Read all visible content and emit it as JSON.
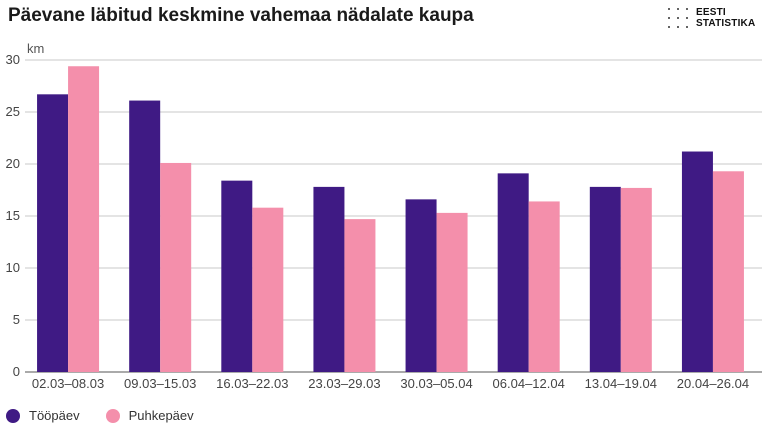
{
  "chart_data": {
    "type": "bar",
    "title": "Päevane läbitud keskmine vahemaa nädalate kaupa",
    "ylabel": "km",
    "xlabel": "",
    "ylim": [
      0,
      30
    ],
    "yticks": [
      0,
      5,
      10,
      15,
      20,
      25,
      30
    ],
    "grid": true,
    "legend_position": "bottom-left",
    "categories": [
      "02.03–08.03",
      "09.03–15.03",
      "16.03–22.03",
      "23.03–29.03",
      "30.03–05.04",
      "06.04–12.04",
      "13.04–19.04",
      "20.04–26.04"
    ],
    "series": [
      {
        "name": "Tööpäev",
        "color": "#3f1a84",
        "values": [
          26.7,
          26.1,
          18.4,
          17.8,
          16.6,
          19.1,
          17.8,
          21.2
        ]
      },
      {
        "name": "Puhkepäev",
        "color": "#f48fab",
        "values": [
          29.4,
          20.1,
          15.8,
          14.7,
          15.3,
          16.4,
          17.7,
          19.3
        ]
      }
    ]
  },
  "logo": {
    "line1": "EESTI",
    "line2": "STATISTIKA"
  }
}
